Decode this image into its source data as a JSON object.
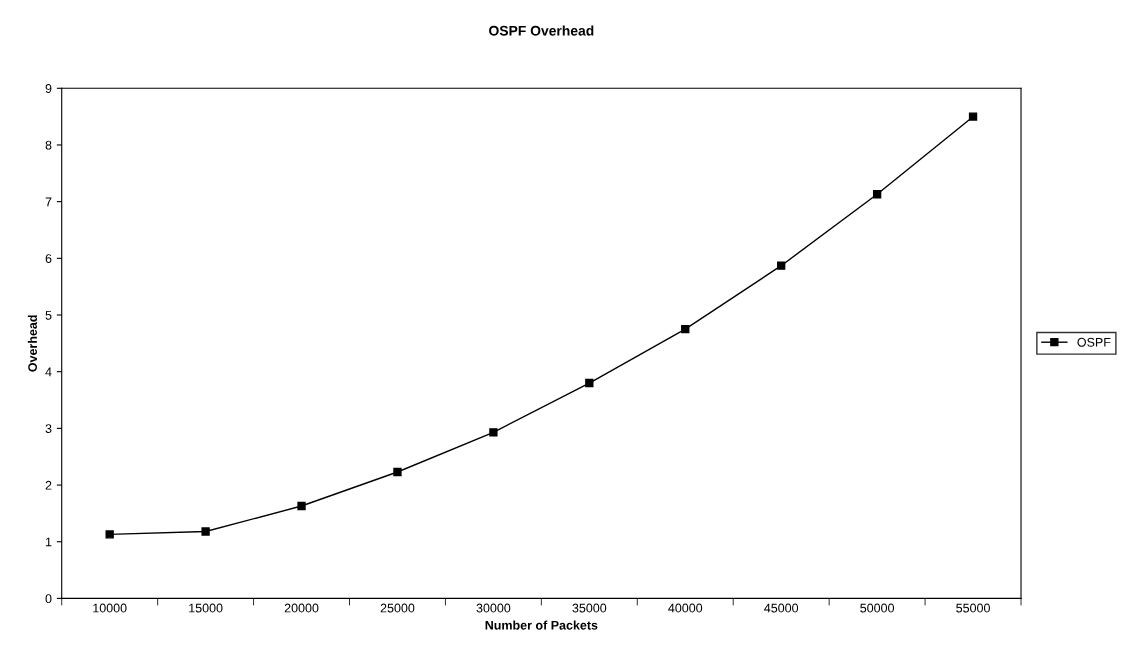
{
  "chart_data": {
    "type": "line",
    "title": "OSPF Overhead",
    "xlabel": "Number of Packets",
    "ylabel": "Overhead",
    "categories": [
      "10000",
      "15000",
      "20000",
      "25000",
      "30000",
      "35000",
      "40000",
      "45000",
      "50000",
      "55000"
    ],
    "series": [
      {
        "name": "OSPF",
        "color": "#000000",
        "values": [
          1.13,
          1.18,
          1.63,
          2.23,
          2.93,
          3.8,
          4.75,
          5.87,
          7.13,
          8.5
        ]
      }
    ],
    "ylim": [
      0,
      9
    ],
    "yticks": [
      0,
      1,
      2,
      3,
      4,
      5,
      6,
      7,
      8,
      9
    ],
    "grid": false,
    "legend": "right",
    "marker": "square",
    "line_style": "solid"
  }
}
